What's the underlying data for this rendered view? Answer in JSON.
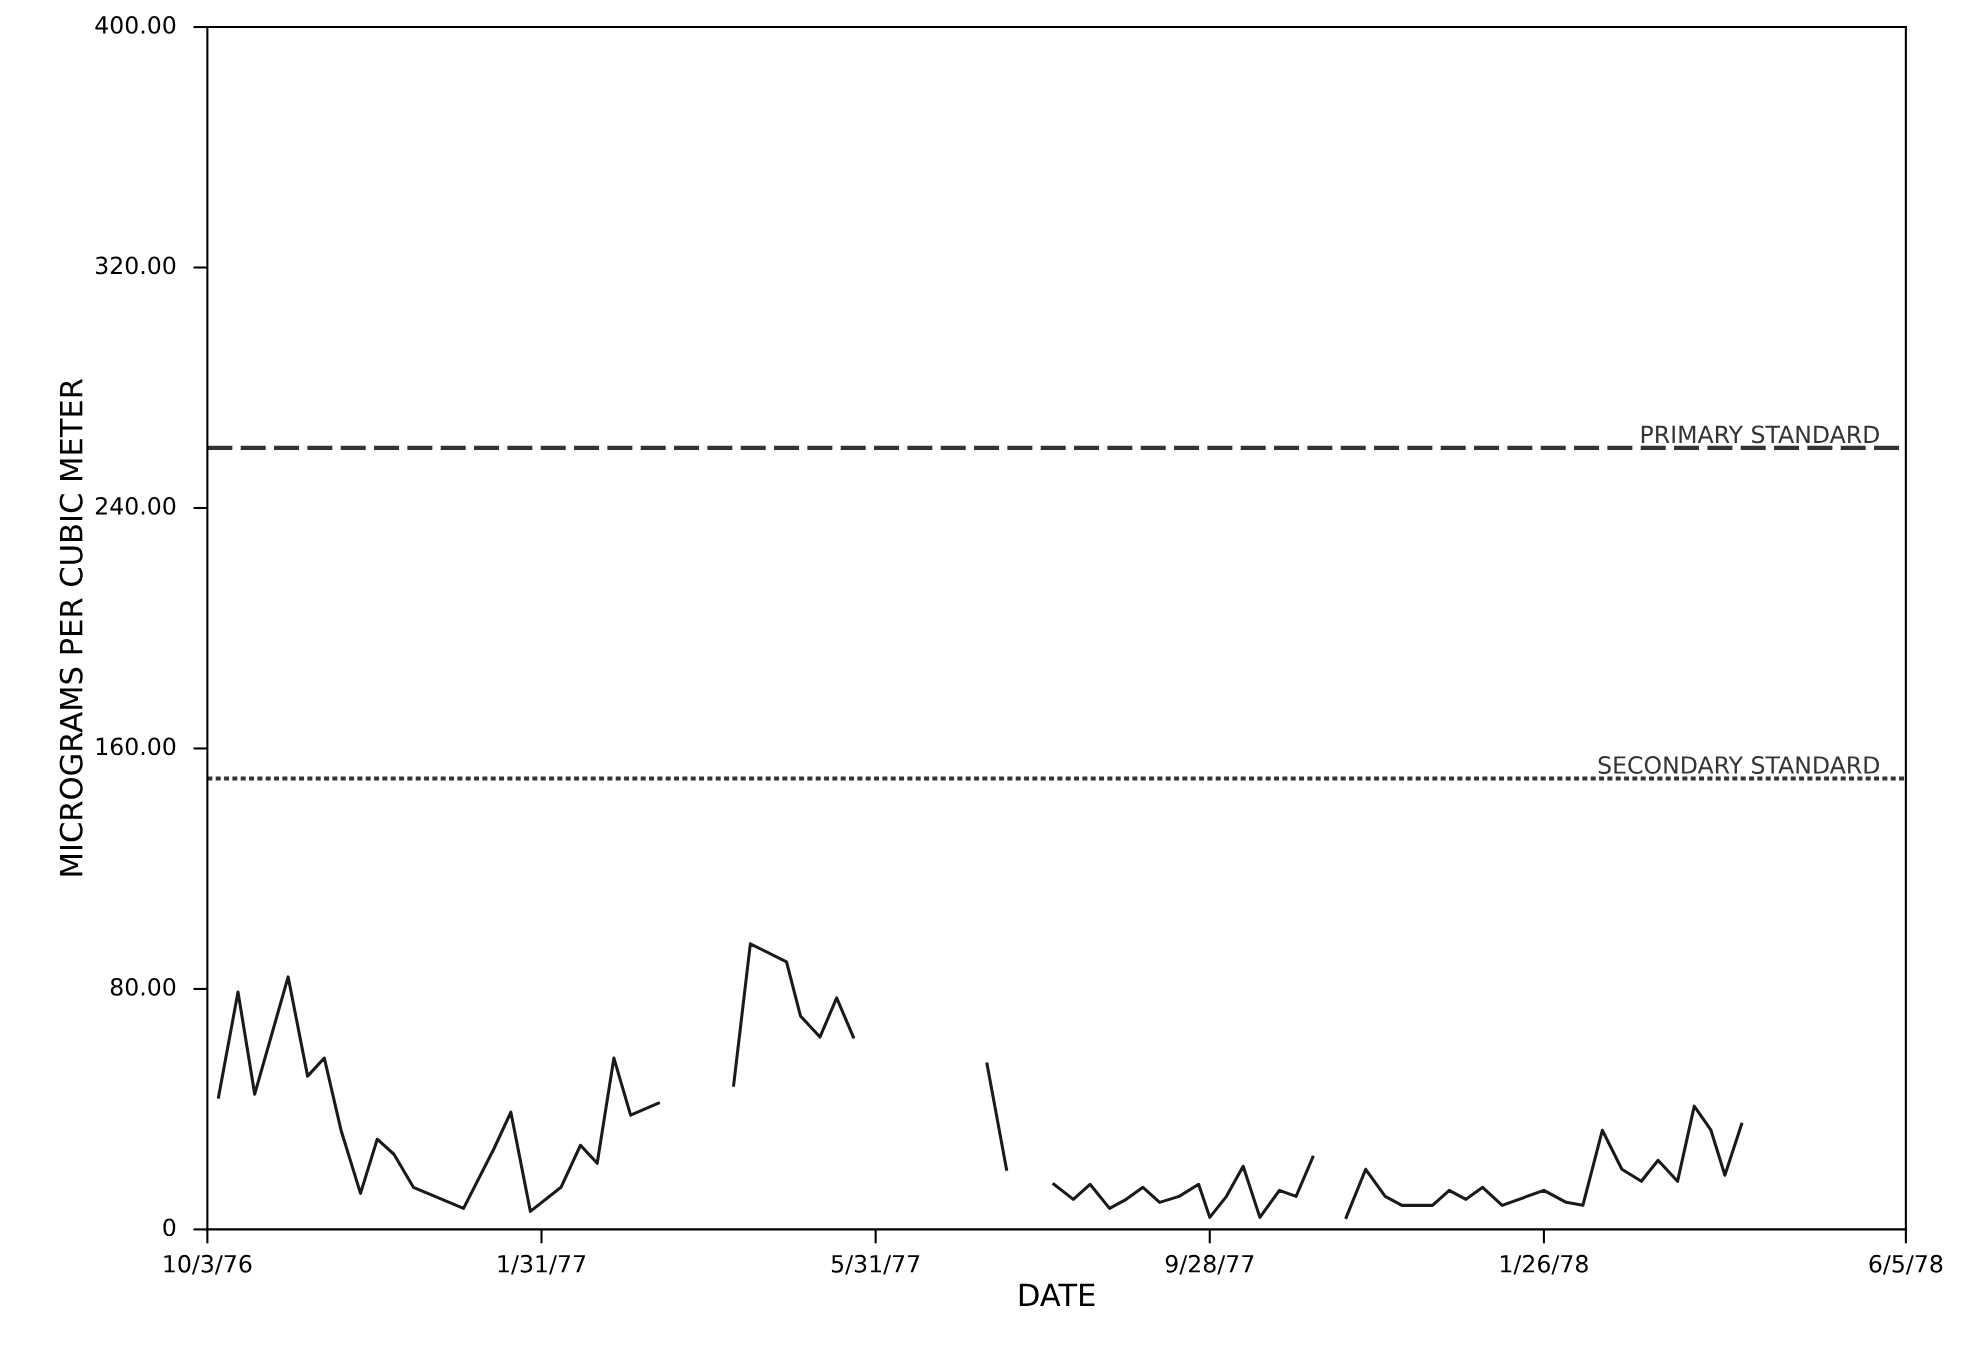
{
  "chart_data": {
    "type": "line",
    "xlabel": "DATE",
    "ylabel": "MICROGRAMS PER CUBIC METER",
    "x": [
      "1976-10-07",
      "1976-10-14",
      "1976-10-20",
      "1976-11-01",
      "1976-11-08",
      "1976-11-14",
      "1976-11-20",
      "1976-11-27",
      "1976-12-03",
      "1976-12-09",
      "1976-12-16",
      "1977-01-03",
      "1977-01-14",
      "1977-01-20",
      "1977-01-27",
      "1977-02-07",
      "1977-02-14",
      "1977-02-20",
      "1977-02-26",
      "1977-03-04",
      "1977-03-14",
      "1977-03-28",
      "1977-04-10",
      "1977-04-16",
      "1977-04-29",
      "1977-05-04",
      "1977-05-11",
      "1977-05-17",
      "1977-05-23",
      "1977-06-20",
      "1977-07-10",
      "1977-07-17",
      "1977-07-25",
      "1977-08-03",
      "1977-08-10",
      "1977-08-16",
      "1977-08-23",
      "1977-08-29",
      "1977-09-04",
      "1977-09-10",
      "1977-09-17",
      "1977-09-24",
      "1977-09-28",
      "1977-10-04",
      "1977-10-10",
      "1977-10-16",
      "1977-10-23",
      "1977-10-29",
      "1977-11-04",
      "1977-11-10",
      "1977-11-16",
      "1977-11-23",
      "1977-11-30",
      "1977-12-06",
      "1977-12-17",
      "1977-12-23",
      "1977-12-29",
      "1978-01-04",
      "1978-01-11",
      "1978-01-26",
      "1978-02-03",
      "1978-02-09",
      "1978-02-16",
      "1978-02-23",
      "1978-03-02",
      "1978-03-08",
      "1978-03-15",
      "1978-03-21",
      "1978-03-27",
      "1978-04-01",
      "1978-04-07"
    ],
    "series": [
      {
        "color": "#1a1a1a",
        "values": [
          44,
          79,
          45,
          84,
          51,
          57,
          33,
          12,
          30,
          25,
          14,
          7,
          27,
          39,
          6,
          14,
          28,
          22,
          57,
          38,
          42,
          null,
          48,
          95,
          89,
          71,
          64,
          77,
          64,
          null,
          55,
          20,
          null,
          15,
          10,
          15,
          7,
          10,
          14,
          9,
          11,
          15,
          4,
          11,
          21,
          4,
          13,
          11,
          24,
          null,
          4,
          20,
          11,
          8,
          8,
          13,
          10,
          14,
          8,
          13,
          9,
          8,
          33,
          20,
          16,
          23,
          16,
          41,
          33,
          18,
          35
        ]
      }
    ],
    "xlim": [
      "1976-10-03",
      "1978-06-05"
    ],
    "xticks": [
      {
        "value": "1976-10-03",
        "label": "10/3/76"
      },
      {
        "value": "1977-01-31",
        "label": "1/31/77"
      },
      {
        "value": "1977-05-31",
        "label": "5/31/77"
      },
      {
        "value": "1977-09-28",
        "label": "9/28/77"
      },
      {
        "value": "1978-01-26",
        "label": "1/26/78"
      },
      {
        "value": "1978-06-05",
        "label": "6/5/78"
      }
    ],
    "ylim": [
      0,
      400
    ],
    "yticks": [
      0,
      {
        "value": 80,
        "label": "80.00"
      },
      {
        "value": 160,
        "label": "160.00"
      },
      {
        "value": 240,
        "label": "240.00"
      },
      {
        "value": 320,
        "label": "320.00"
      },
      {
        "value": 400,
        "label": "400.00"
      }
    ],
    "ref_lines": [
      {
        "axis": "y",
        "value": 260,
        "label": "PRIMARY STANDARD",
        "color": "#333333",
        "line_style": "dashed"
      },
      {
        "axis": "y",
        "value": 150,
        "label": "SECONDARY STANDARD",
        "color": "#333333",
        "line_style": "dotted"
      }
    ],
    "grid": false,
    "marker": "none",
    "line_style": "solid"
  }
}
